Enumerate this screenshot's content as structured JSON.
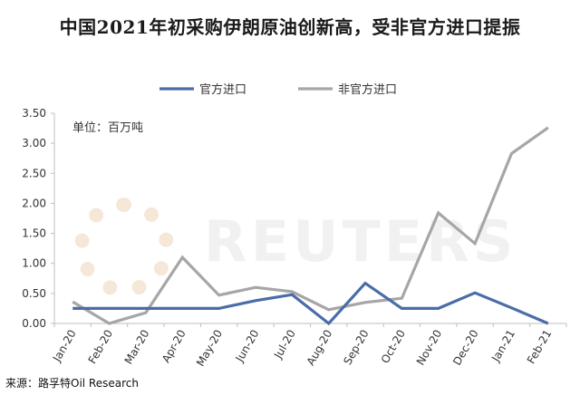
{
  "title": "中国2021年初采购伊朗原油创新高，受非官方进口提振",
  "unit_label": "单位：百万吨",
  "source": "来源：路孚特Oil Research",
  "watermark": "REUTERS",
  "colors": {
    "official": "#4a6da8",
    "unofficial": "#a6a6a6",
    "axis": "#bfbfbf"
  },
  "chart_data": {
    "type": "line",
    "title": "中国2021年初采购伊朗原油创新高，受非官方进口提振",
    "xlabel": "",
    "ylabel": "单位：百万吨",
    "ylim": [
      0,
      3.5
    ],
    "yticks": [
      "0.00",
      "0.50",
      "1.00",
      "1.50",
      "2.00",
      "2.50",
      "3.00",
      "3.50"
    ],
    "ytick_values": [
      0,
      0.5,
      1.0,
      1.5,
      2.0,
      2.5,
      3.0,
      3.5
    ],
    "categories": [
      "Jan-20",
      "Feb-20",
      "Mar-20",
      "Apr-20",
      "May-20",
      "Jun-20",
      "Jul-20",
      "Aug-20",
      "Sep-20",
      "Oct-20",
      "Nov-20",
      "Dec-20",
      "Jan-21",
      "Feb-21"
    ],
    "grid": false,
    "legend_position": "top-center",
    "series": [
      {
        "name": "官方进口",
        "values": [
          0.25,
          0.25,
          0.25,
          0.25,
          0.25,
          0.38,
          0.48,
          0.0,
          0.67,
          0.25,
          0.25,
          0.51,
          0.26,
          0.0
        ]
      },
      {
        "name": "非官方进口",
        "values": [
          0.36,
          0.0,
          0.18,
          1.1,
          0.47,
          0.6,
          0.53,
          0.23,
          0.35,
          0.42,
          1.84,
          1.33,
          2.83,
          3.26
        ]
      }
    ]
  }
}
